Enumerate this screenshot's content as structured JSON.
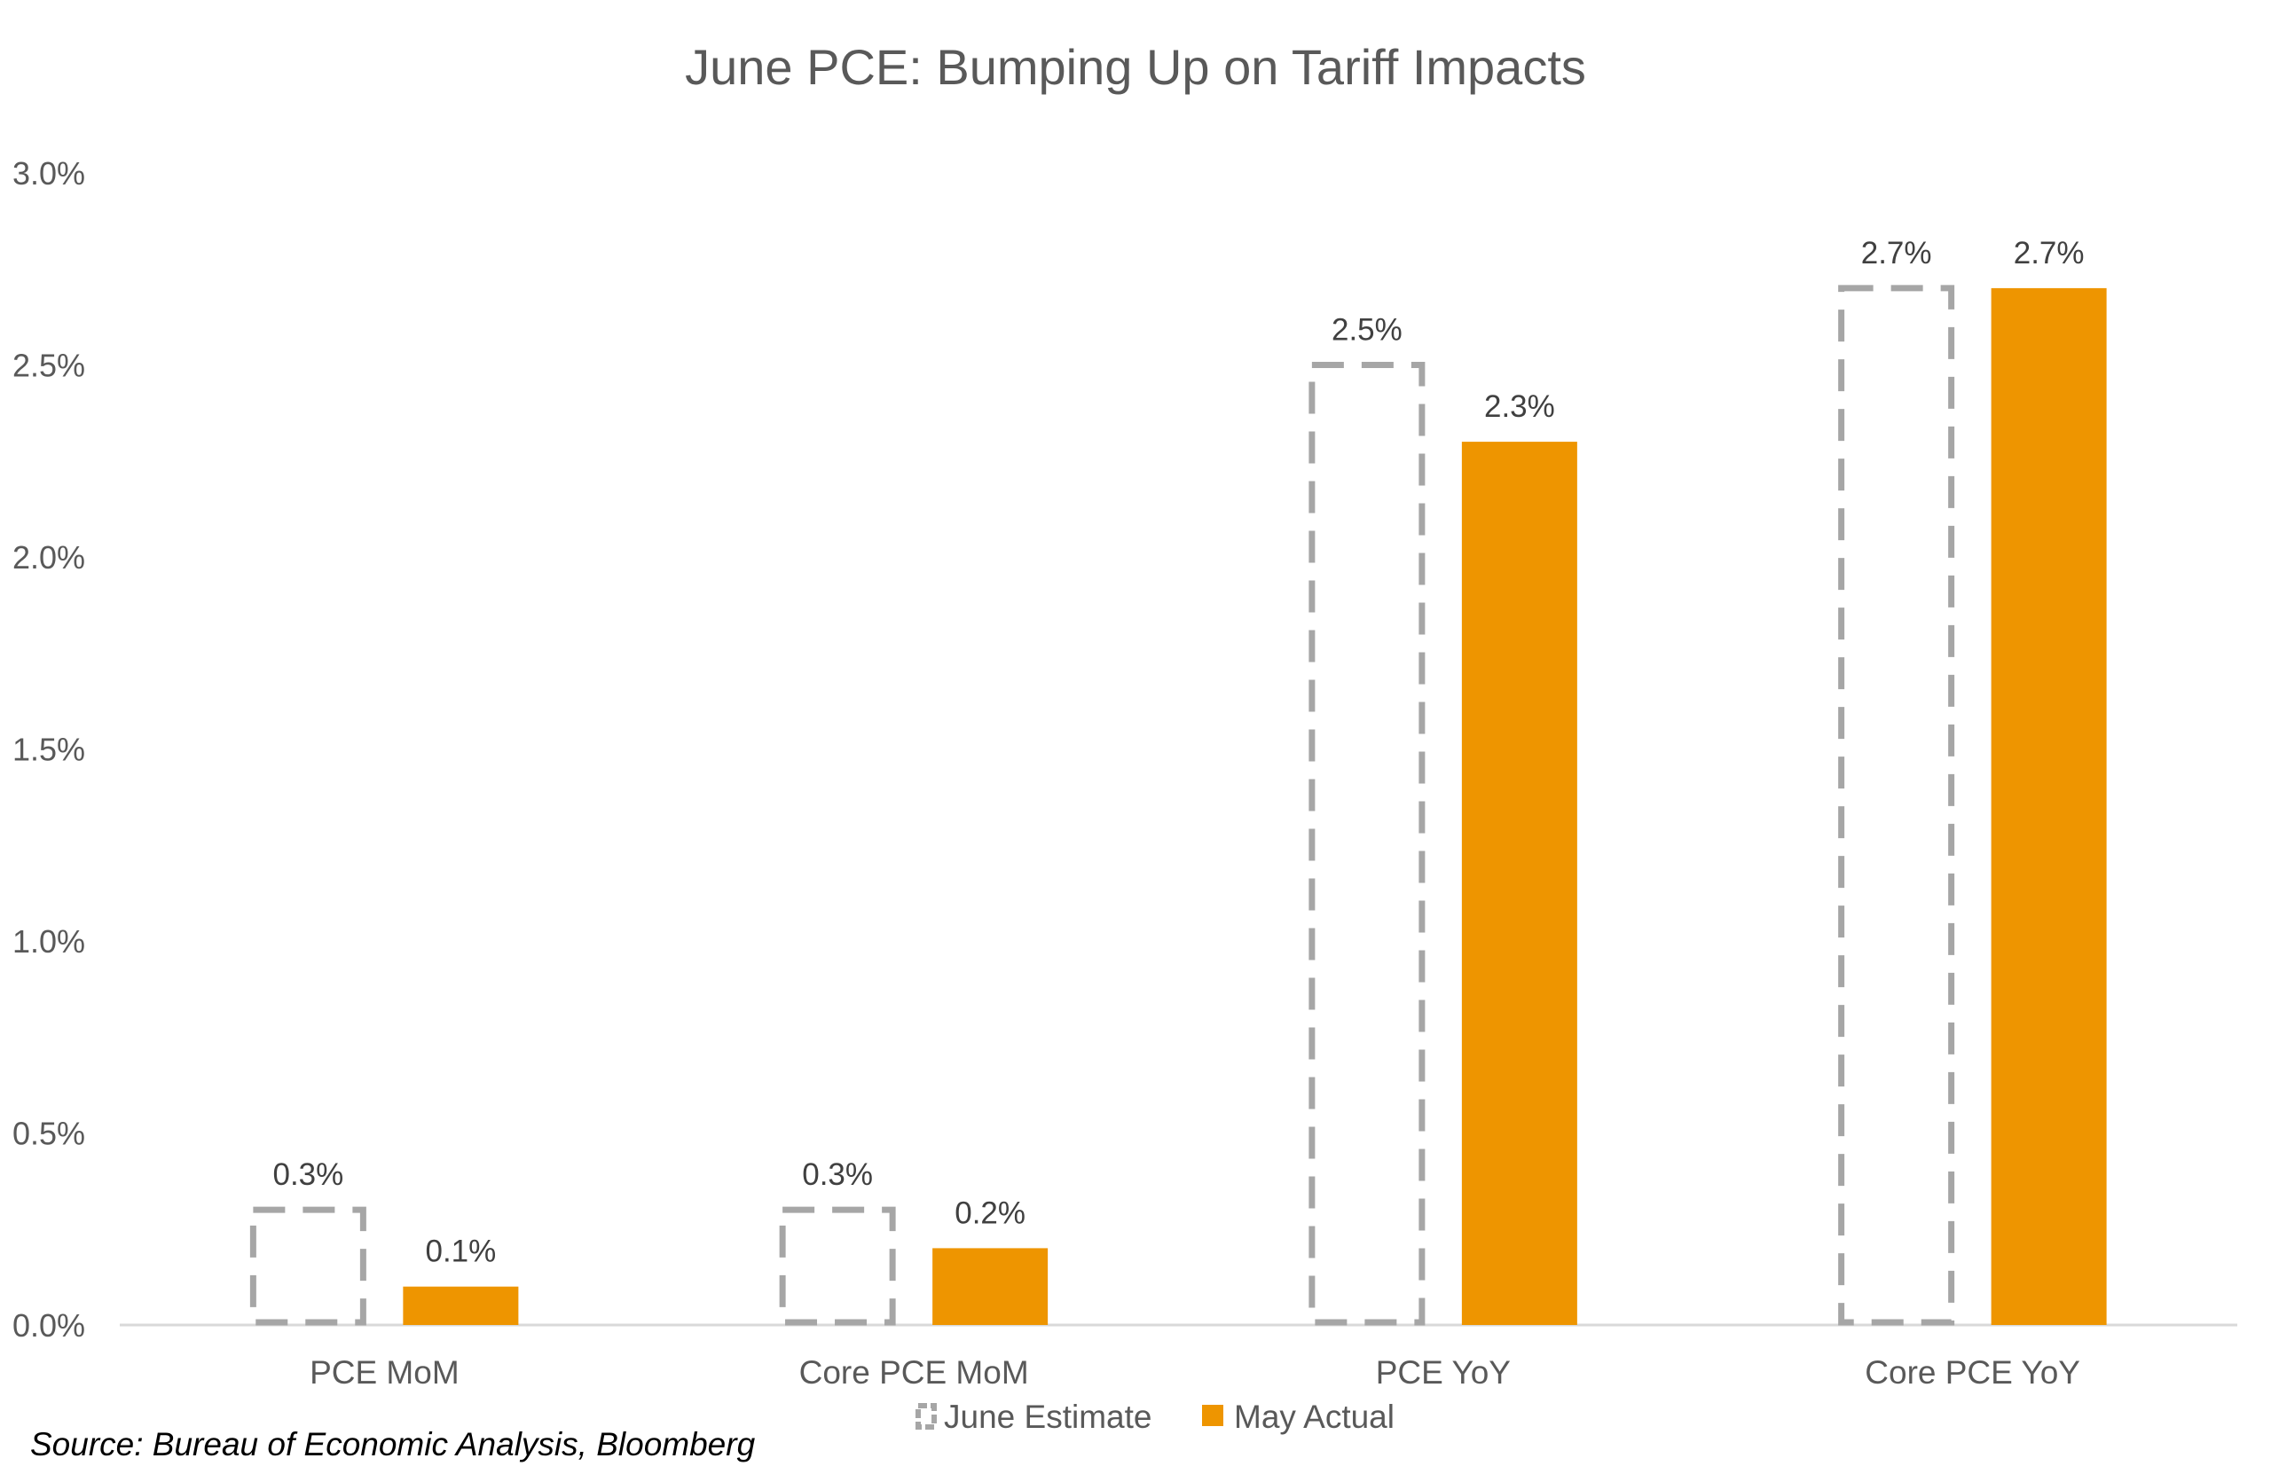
{
  "chart_data": {
    "type": "bar",
    "title": "June PCE: Bumping Up on Tariff Impacts",
    "categories": [
      "PCE MoM",
      "Core PCE MoM",
      "PCE YoY",
      "Core PCE YoY"
    ],
    "series": [
      {
        "name": "June Estimate",
        "values": [
          0.3,
          0.3,
          2.5,
          2.7
        ],
        "labels": [
          "0.3%",
          "0.3%",
          "2.5%",
          "2.7%"
        ],
        "style": "dashed-outline",
        "color": "#A6A6A6"
      },
      {
        "name": "May Actual",
        "values": [
          0.1,
          0.2,
          2.3,
          2.7
        ],
        "labels": [
          "0.1%",
          "0.2%",
          "2.3%",
          "2.7%"
        ],
        "style": "solid",
        "color": "#EE9500"
      }
    ],
    "ylim": [
      0,
      3.0
    ],
    "yticks": [
      0,
      0.5,
      1.0,
      1.5,
      2.0,
      2.5,
      3.0
    ],
    "ytick_labels": [
      "0.0%",
      "0.5%",
      "1.0%",
      "1.5%",
      "2.0%",
      "2.5%",
      "3.0%"
    ],
    "grid": false,
    "legend_position": "bottom"
  },
  "source": "Source: Bureau of Economic Analysis, Bloomberg"
}
